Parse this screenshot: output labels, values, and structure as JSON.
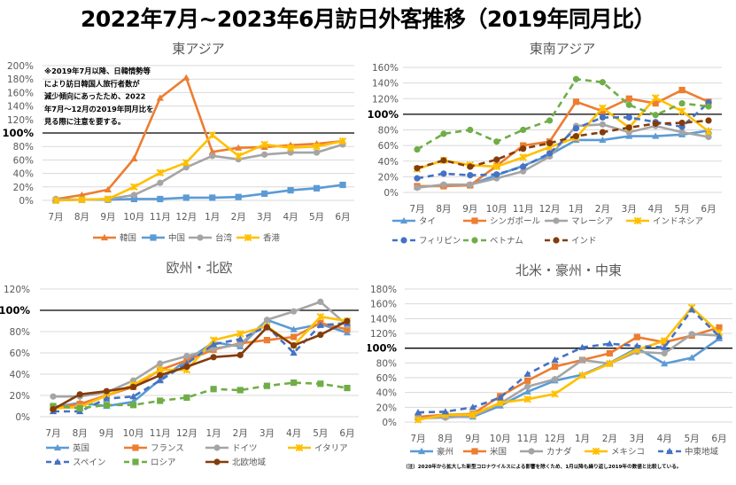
{
  "page_title": "2022年7月~2023年6月訪日外客推移（2019年同月比）",
  "footnote": "（注）2020年から拡大した新型コロナウイルスによる影響を除くため、1月以降も繰り返し2019年の数値と比較している。",
  "chart_data": [
    {
      "id": "east-asia",
      "type": "line",
      "title": "東アジア",
      "xlabel": "",
      "ylabel": "",
      "categories": [
        "7月",
        "8月",
        "9月",
        "10月",
        "11月",
        "12月",
        "1月",
        "2月",
        "3月",
        "4月",
        "5月",
        "6月"
      ],
      "yticks": [
        "0%",
        "20%",
        "40%",
        "60%",
        "80%",
        "100%",
        "120%",
        "140%",
        "160%",
        "180%",
        "200%"
      ],
      "ylim": [
        0,
        200
      ],
      "reference_line": 100,
      "grid": true,
      "legend_position": "bottom",
      "annotation": [
        "※2019年7月以降、日韓情勢等",
        "により訪日韓国人旅行者数が",
        "減少傾向にあったため、2022",
        "年7月～12月の2019年同月比を",
        "見る際に注意を要する。"
      ],
      "series": [
        {
          "name": "韓国",
          "color": "#ED7D31",
          "dash": false,
          "marker": "triangle",
          "values": [
            2,
            8,
            16,
            62,
            152,
            182,
            72,
            78,
            79,
            82,
            84,
            88
          ]
        },
        {
          "name": "中国",
          "color": "#5B9BD5",
          "dash": false,
          "marker": "square",
          "values": [
            0,
            1,
            1,
            2,
            2,
            4,
            4,
            5,
            10,
            15,
            18,
            23
          ]
        },
        {
          "name": "台湾",
          "color": "#A5A5A5",
          "dash": false,
          "marker": "circle",
          "values": [
            2,
            1,
            2,
            8,
            26,
            49,
            66,
            61,
            68,
            71,
            71,
            83
          ]
        },
        {
          "name": "香港",
          "color": "#FFC000",
          "dash": false,
          "marker": "star",
          "values": [
            0,
            1,
            2,
            20,
            41,
            56,
            97,
            66,
            83,
            78,
            80,
            88
          ]
        }
      ]
    },
    {
      "id": "southeast-asia",
      "type": "line",
      "title": "東南アジア",
      "xlabel": "",
      "ylabel": "",
      "categories": [
        "7月",
        "8月",
        "9月",
        "10月",
        "11月",
        "12月",
        "1月",
        "2月",
        "3月",
        "4月",
        "5月",
        "6月"
      ],
      "yticks": [
        "0%",
        "20%",
        "40%",
        "60%",
        "80%",
        "100%",
        "120%",
        "140%",
        "160%"
      ],
      "ylim": [
        0,
        160
      ],
      "reference_line": 100,
      "grid": true,
      "legend_position": "bottom",
      "series": [
        {
          "name": "タイ",
          "color": "#5B9BD5",
          "dash": false,
          "marker": "triangle",
          "values": [
            7,
            9,
            10,
            22,
            34,
            48,
            67,
            67,
            72,
            72,
            74,
            79
          ]
        },
        {
          "name": "シンガポール",
          "color": "#ED7D31",
          "dash": false,
          "marker": "square",
          "values": [
            8,
            8,
            9,
            34,
            60,
            65,
            116,
            104,
            120,
            114,
            131,
            116
          ]
        },
        {
          "name": "マレーシア",
          "color": "#A5A5A5",
          "dash": false,
          "marker": "circle",
          "values": [
            6,
            10,
            10,
            18,
            27,
            46,
            85,
            87,
            77,
            85,
            77,
            71
          ]
        },
        {
          "name": "インドネシア",
          "color": "#FFC000",
          "dash": false,
          "marker": "star",
          "values": [
            30,
            41,
            35,
            33,
            45,
            58,
            70,
            108,
            83,
            121,
            104,
            78
          ]
        },
        {
          "name": "フィリピン",
          "color": "#4472C4",
          "dash": true,
          "marker": "circle",
          "values": [
            18,
            24,
            22,
            23,
            33,
            50,
            82,
            96,
            96,
            90,
            84,
            115
          ]
        },
        {
          "name": "ベトナム",
          "color": "#70AD47",
          "dash": true,
          "marker": "circle",
          "values": [
            55,
            75,
            80,
            65,
            80,
            92,
            145,
            141,
            112,
            99,
            114,
            110
          ]
        },
        {
          "name": "インド",
          "color": "#843C0C",
          "dash": true,
          "marker": "circle",
          "values": [
            31,
            41,
            33,
            42,
            56,
            63,
            72,
            77,
            83,
            88,
            89,
            92
          ]
        }
      ]
    },
    {
      "id": "europe",
      "type": "line",
      "title": "欧州・北欧",
      "xlabel": "",
      "ylabel": "",
      "categories": [
        "7月",
        "8月",
        "9月",
        "10月",
        "11月",
        "12月",
        "1月",
        "2月",
        "3月",
        "4月",
        "5月",
        "6月"
      ],
      "yticks": [
        "0%",
        "20%",
        "40%",
        "60%",
        "80%",
        "100%",
        "120%"
      ],
      "ylim": [
        0,
        120
      ],
      "reference_line": 100,
      "grid": true,
      "legend_position": "bottom",
      "series": [
        {
          "name": "英国",
          "color": "#5B9BD5",
          "dash": false,
          "marker": "triangle",
          "values": [
            9,
            13,
            10,
            14,
            35,
            53,
            70,
            66,
            91,
            82,
            87,
            79
          ]
        },
        {
          "name": "フランス",
          "color": "#ED7D31",
          "dash": false,
          "marker": "square",
          "values": [
            8,
            12,
            20,
            28,
            44,
            53,
            63,
            69,
            72,
            75,
            88,
            82
          ]
        },
        {
          "name": "ドイツ",
          "color": "#A5A5A5",
          "dash": false,
          "marker": "circle",
          "values": [
            19,
            19,
            23,
            34,
            50,
            57,
            64,
            68,
            91,
            99,
            108,
            86
          ]
        },
        {
          "name": "イタリア",
          "color": "#FFC000",
          "dash": false,
          "marker": "star",
          "values": [
            8,
            9,
            20,
            30,
            44,
            44,
            72,
            78,
            85,
            67,
            94,
            90
          ]
        },
        {
          "name": "スペイン",
          "color": "#4472C4",
          "dash": true,
          "marker": "triangle",
          "values": [
            5,
            5,
            17,
            19,
            34,
            50,
            68,
            73,
            85,
            60,
            86,
            88
          ]
        },
        {
          "name": "ロシア",
          "color": "#70AD47",
          "dash": true,
          "marker": "square",
          "values": [
            10,
            8,
            11,
            11,
            15,
            18,
            26,
            25,
            29,
            32,
            31,
            27
          ]
        },
        {
          "name": "北欧地域",
          "color": "#843C0C",
          "dash": false,
          "marker": "circle",
          "values": [
            7,
            21,
            24,
            28,
            39,
            47,
            56,
            58,
            84,
            67,
            77,
            90
          ]
        }
      ]
    },
    {
      "id": "americas-oceania-middle-east",
      "type": "line",
      "title": "北米・豪州・中東",
      "xlabel": "",
      "ylabel": "",
      "categories": [
        "7月",
        "8月",
        "9月",
        "10月",
        "11月",
        "12月",
        "1月",
        "2月",
        "3月",
        "4月",
        "5月",
        "6月"
      ],
      "yticks": [
        "0%",
        "20%",
        "40%",
        "60%",
        "80%",
        "100%",
        "120%",
        "140%",
        "160%",
        "180%"
      ],
      "ylim": [
        0,
        180
      ],
      "reference_line": 100,
      "grid": true,
      "legend_position": "bottom",
      "series": [
        {
          "name": "豪州",
          "color": "#5B9BD5",
          "dash": false,
          "marker": "triangle",
          "values": [
            6,
            7,
            7,
            22,
            41,
            56,
            64,
            80,
            100,
            79,
            87,
            113
          ]
        },
        {
          "name": "米国",
          "color": "#ED7D31",
          "dash": false,
          "marker": "square",
          "values": [
            7,
            10,
            11,
            35,
            56,
            75,
            84,
            93,
            115,
            108,
            117,
            128
          ]
        },
        {
          "name": "カナダ",
          "color": "#A5A5A5",
          "dash": false,
          "marker": "circle",
          "values": [
            5,
            6,
            8,
            25,
            48,
            58,
            84,
            79,
            95,
            93,
            119,
            117
          ]
        },
        {
          "name": "メキシコ",
          "color": "#FFC000",
          "dash": false,
          "marker": "star",
          "values": [
            3,
            10,
            10,
            26,
            31,
            38,
            63,
            79,
            98,
            110,
            155,
            121
          ]
        },
        {
          "name": "中東地域",
          "color": "#4472C4",
          "dash": true,
          "marker": "triangle",
          "values": [
            13,
            14,
            20,
            33,
            65,
            84,
            101,
            106,
            103,
            101,
            152,
            116
          ]
        }
      ]
    }
  ]
}
